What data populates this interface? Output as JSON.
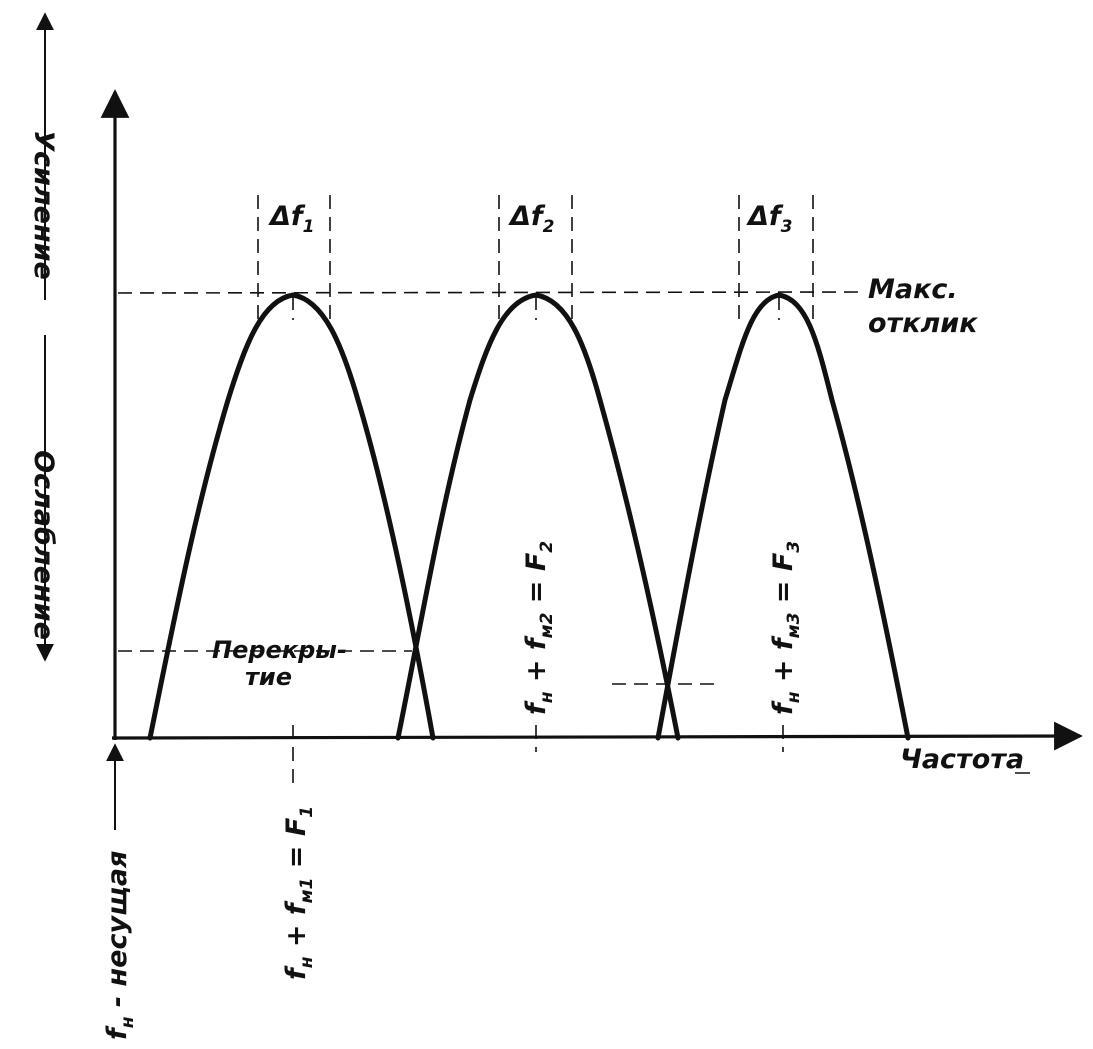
{
  "labels": {
    "gain": "Усиление",
    "attenuation": "Ослабление",
    "frequency": "Частота",
    "max_response_1": "Макс.",
    "max_response_2": "отклик",
    "overlap_1": "Перекры-",
    "overlap_2": "тие",
    "carrier": "f",
    "carrier_sub": "н",
    "carrier_text": " - несущая"
  },
  "bandwidths": [
    {
      "delta": "Δf",
      "sub": "1"
    },
    {
      "delta": "Δf",
      "sub": "2"
    },
    {
      "delta": "Δf",
      "sub": "3"
    }
  ],
  "channel_formulas": [
    {
      "f": "f",
      "f_sub": "н",
      "plus": " + f",
      "m_sub": "м1",
      "eq": " = F",
      "F_sub": "1"
    },
    {
      "f": "f",
      "f_sub": "н",
      "plus": " + f",
      "m_sub": "м2",
      "eq": " = F",
      "F_sub": "2"
    },
    {
      "f": "f",
      "f_sub": "н",
      "plus": " + f",
      "m_sub": "м3",
      "eq": " = F",
      "F_sub": "3"
    }
  ]
}
